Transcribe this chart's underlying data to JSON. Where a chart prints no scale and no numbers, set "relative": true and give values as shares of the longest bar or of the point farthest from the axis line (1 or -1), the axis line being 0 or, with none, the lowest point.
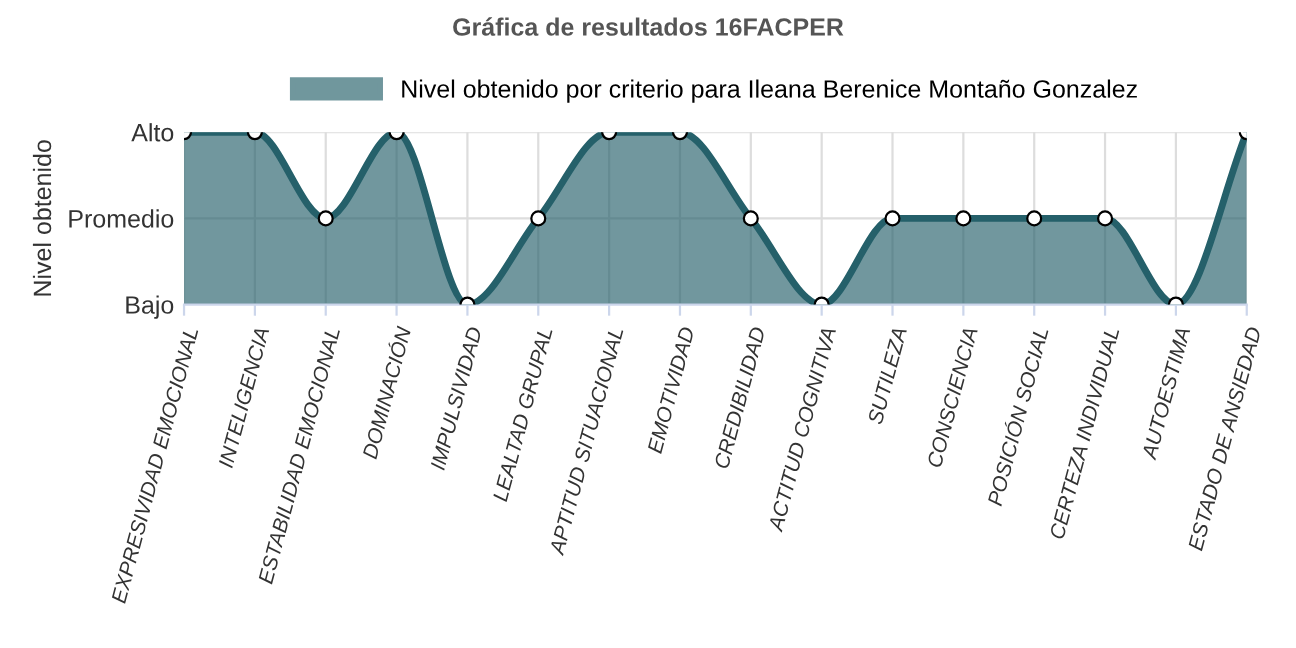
{
  "chart_data": {
    "type": "area",
    "title": "Gráfica de resultados 16FACPER",
    "ylabel": "Nivel obtenido",
    "categories": [
      "EXPRESIVIDAD EMOCIONAL",
      "INTELIGENCIA",
      "ESTABILIDAD EMOCIONAL",
      "DOMINACIÓN",
      "IMPULSIVIDAD",
      "LEALTAD GRUPAL",
      "APTITUD SITUACIONAL",
      "EMOTIVIDAD",
      "CREDIBILIDAD",
      "ACTITUD COGNITIVA",
      "SUTILEZA",
      "CONSCIENCIA",
      "POSICIÓN SOCIAL",
      "CERTEZA INDIVIDUAL",
      "AUTOESTIMA",
      "ESTADO DE ANSIEDAD"
    ],
    "series": [
      {
        "name": "Nivel obtenido por criterio para Ileana Berenice Montaño Gonzalez",
        "color": "#25606a",
        "values": [
          1,
          1,
          0.5,
          1,
          0,
          0.5,
          1,
          1,
          0.5,
          0,
          0.5,
          0.5,
          0.5,
          0.5,
          0,
          1
        ]
      }
    ],
    "relative": true,
    "annotations": [
      "Bajo",
      "Promedio",
      "Alto"
    ],
    "grid": true,
    "legend": "top",
    "marker": "circle",
    "line_style": "solid"
  }
}
